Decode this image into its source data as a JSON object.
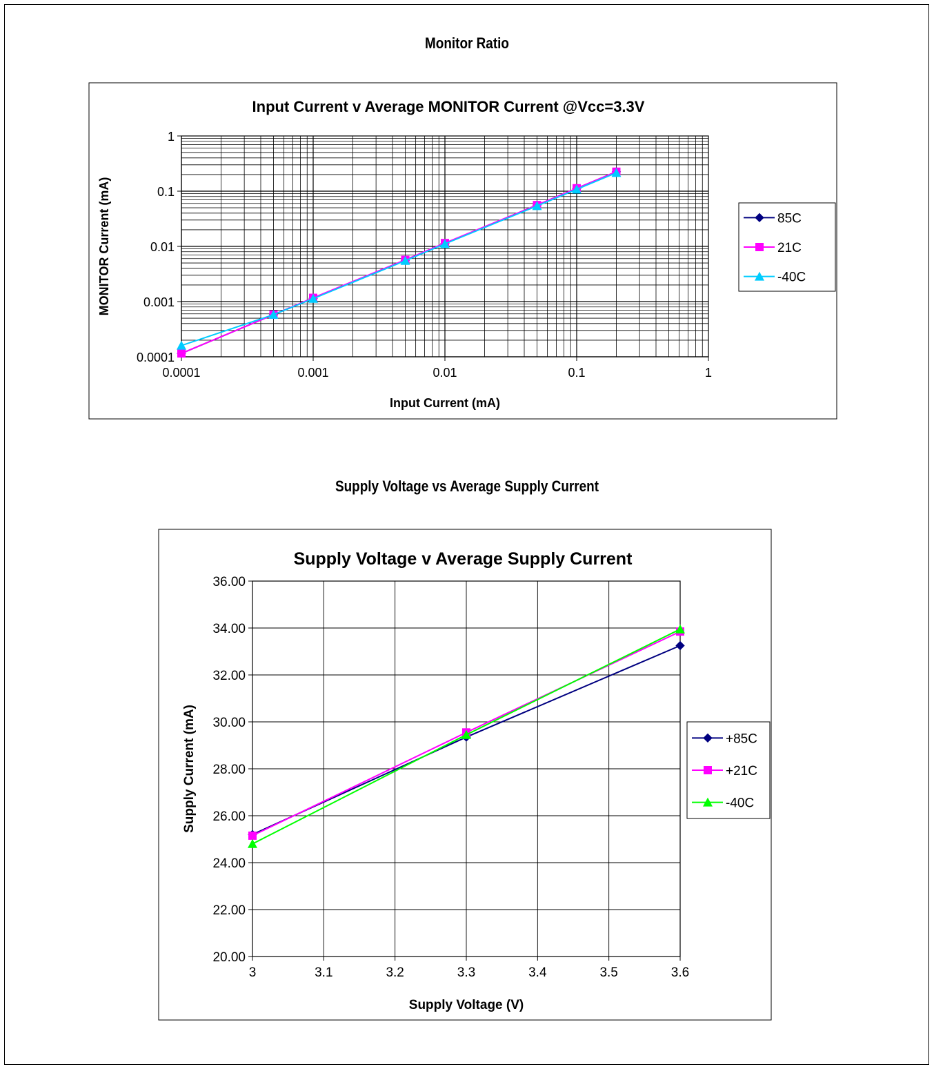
{
  "sections": {
    "top_title": "Monitor Ratio",
    "bottom_title": "Supply Voltage vs Average Supply Current"
  },
  "chart_data": [
    {
      "type": "line",
      "title": "Input Current v Average MONITOR Current @Vcc=3.3V",
      "xlabel": "Input Current (mA)",
      "ylabel": "MONITOR Current (mA)",
      "xscale": "log",
      "yscale": "log",
      "xlim": [
        0.0001,
        1
      ],
      "ylim": [
        0.0001,
        1
      ],
      "xticks": [
        "0.0001",
        "0.001",
        "0.01",
        "0.1",
        "1"
      ],
      "yticks": [
        "0.0001",
        "0.001",
        "0.01",
        "0.1",
        "1"
      ],
      "grid": true,
      "legend_position": "right",
      "series": [
        {
          "name": "85C",
          "color": "#000080",
          "marker": "diamond",
          "x": [
            0.0001,
            0.0005,
            0.001,
            0.005,
            0.01,
            0.05,
            0.1,
            0.2
          ],
          "y": [
            0.000115,
            0.00058,
            0.00115,
            0.0056,
            0.0113,
            0.056,
            0.112,
            0.225
          ]
        },
        {
          "name": "21C",
          "color": "#FF00FF",
          "marker": "square",
          "x": [
            0.0001,
            0.0005,
            0.001,
            0.005,
            0.01,
            0.05,
            0.1,
            0.2
          ],
          "y": [
            0.000115,
            0.00058,
            0.00117,
            0.0057,
            0.0115,
            0.056,
            0.113,
            0.225
          ]
        },
        {
          "name": "-40C",
          "color": "#00CCFF",
          "marker": "triangle",
          "x": [
            0.0001,
            0.0005,
            0.001,
            0.005,
            0.01,
            0.05,
            0.1,
            0.2
          ],
          "y": [
            0.00016,
            0.00058,
            0.00113,
            0.0055,
            0.0111,
            0.054,
            0.108,
            0.215
          ]
        }
      ]
    },
    {
      "type": "line",
      "title": "Supply Voltage v Average Supply Current",
      "xlabel": "Supply Voltage (V)",
      "ylabel": "Supply Current (mA)",
      "xlim": [
        3,
        3.6
      ],
      "ylim": [
        20,
        36
      ],
      "xticks": [
        "3",
        "3.1",
        "3.2",
        "3.3",
        "3.4",
        "3.5",
        "3.6"
      ],
      "yticks": [
        "20.00",
        "22.00",
        "24.00",
        "26.00",
        "28.00",
        "30.00",
        "32.00",
        "34.00",
        "36.00"
      ],
      "grid": true,
      "legend_position": "right",
      "series": [
        {
          "name": "+85C",
          "color": "#000080",
          "marker": "diamond",
          "x": [
            3,
            3.3,
            3.6
          ],
          "y": [
            25.2,
            29.35,
            33.25
          ]
        },
        {
          "name": "+21C",
          "color": "#FF00FF",
          "marker": "square",
          "x": [
            3,
            3.3,
            3.6
          ],
          "y": [
            25.15,
            29.55,
            33.85
          ]
        },
        {
          "name": "-40C",
          "color": "#00FF00",
          "marker": "triangle",
          "x": [
            3,
            3.3,
            3.6
          ],
          "y": [
            24.8,
            29.45,
            33.95
          ]
        }
      ]
    }
  ]
}
